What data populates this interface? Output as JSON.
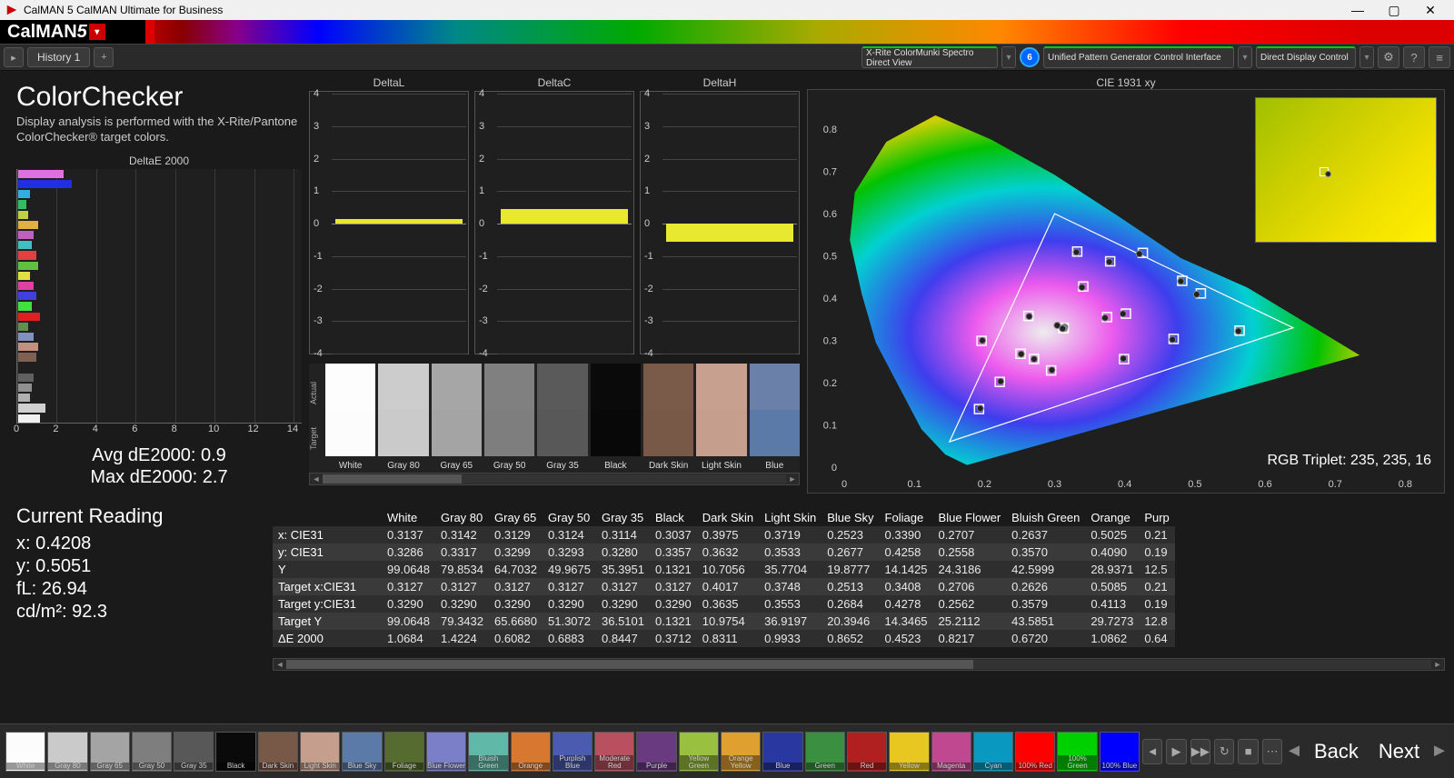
{
  "window": {
    "title": "CalMAN 5 CalMAN Ultimate for Business",
    "brand": "CalMAN5"
  },
  "tabs": {
    "history": "History 1"
  },
  "topPanels": {
    "meter": "X-Rite ColorMunki Spectro\nDirect View",
    "meterCount": "6",
    "source": "Unified Pattern Generator Control Interface",
    "display": "Direct Display Control"
  },
  "header": {
    "title": "ColorChecker",
    "subtitle": "Display analysis is performed with the X-Rite/Pantone ColorChecker® target colors."
  },
  "de2000": {
    "title": "DeltaE 2000",
    "xmax": 14,
    "xticks": [
      0,
      2,
      4,
      6,
      8,
      10,
      12,
      14
    ],
    "bars": [
      {
        "v": 2.3,
        "c": "#e070e0"
      },
      {
        "v": 2.7,
        "c": "#2030e0"
      },
      {
        "v": 0.6,
        "c": "#30b0e0"
      },
      {
        "v": 0.4,
        "c": "#30c060"
      },
      {
        "v": 0.5,
        "c": "#c0d040"
      },
      {
        "v": 1.0,
        "c": "#e0b040"
      },
      {
        "v": 0.8,
        "c": "#c060c0"
      },
      {
        "v": 0.7,
        "c": "#40c0c0"
      },
      {
        "v": 0.9,
        "c": "#e04040"
      },
      {
        "v": 1.0,
        "c": "#60c040"
      },
      {
        "v": 0.6,
        "c": "#e0e040"
      },
      {
        "v": 0.8,
        "c": "#e040a0"
      },
      {
        "v": 0.9,
        "c": "#4040e0"
      },
      {
        "v": 0.7,
        "c": "#40e040"
      },
      {
        "v": 1.1,
        "c": "#e02020"
      },
      {
        "v": 0.5,
        "c": "#609050"
      },
      {
        "v": 0.8,
        "c": "#8090c0"
      },
      {
        "v": 1.0,
        "c": "#c09080"
      },
      {
        "v": 0.9,
        "c": "#806050"
      },
      {
        "v": 0.4,
        "c": "#202020"
      },
      {
        "v": 0.8,
        "c": "#606060"
      },
      {
        "v": 0.7,
        "c": "#909090"
      },
      {
        "v": 0.6,
        "c": "#b0b0b0"
      },
      {
        "v": 1.4,
        "c": "#d0d0d0"
      },
      {
        "v": 1.1,
        "c": "#f0f0f0"
      }
    ]
  },
  "stats": {
    "avg_label": "Avg dE2000:",
    "avg": "0.9",
    "max_label": "Max dE2000:",
    "max": "2.7"
  },
  "reading": {
    "title": "Current Reading",
    "x_label": "x:",
    "x": "0.4208",
    "y_label": "y:",
    "y": "0.5051",
    "fl_label": "fL:",
    "fl": "26.94",
    "cd_label": "cd/m²:",
    "cd": "92.3"
  },
  "deltaCharts": {
    "ymin": -4,
    "ymax": 4,
    "ticks": [
      -4,
      -3,
      -2,
      -1,
      0,
      1,
      2,
      3,
      4
    ],
    "items": [
      {
        "title": "DeltaL",
        "value": 0.15,
        "color": "#e8e830"
      },
      {
        "title": "DeltaC",
        "value": 0.45,
        "color": "#e8e830"
      },
      {
        "title": "DeltaH",
        "value": -0.55,
        "color": "#e8e830"
      }
    ]
  },
  "swatches": {
    "axis_actual": "Actual",
    "axis_target": "Target",
    "items": [
      {
        "label": "White",
        "actual": "#fdfdfd",
        "target": "#fcfcfc"
      },
      {
        "label": "Gray 80",
        "actual": "#cccccc",
        "target": "#cacaca"
      },
      {
        "label": "Gray 65",
        "actual": "#a6a6a6",
        "target": "#a4a4a4"
      },
      {
        "label": "Gray 50",
        "actual": "#808080",
        "target": "#7e7e7e"
      },
      {
        "label": "Gray 35",
        "actual": "#5a5a5a",
        "target": "#585858"
      },
      {
        "label": "Black",
        "actual": "#0a0a0a",
        "target": "#080808"
      },
      {
        "label": "Dark Skin",
        "actual": "#7a5a48",
        "target": "#785846"
      },
      {
        "label": "Light Skin",
        "actual": "#c8a090",
        "target": "#c69e8e"
      },
      {
        "label": "Blue",
        "actual": "#6a80a8",
        "target": "#5c7aa8"
      }
    ]
  },
  "cie": {
    "title": "CIE 1931 xy",
    "xlim": [
      0,
      0.85
    ],
    "ylim": [
      0,
      0.88
    ],
    "xticks": [
      0,
      0.1,
      0.2,
      0.3,
      0.4,
      0.5,
      0.6,
      0.7,
      0.8
    ],
    "yticks": [
      0,
      0.1,
      0.2,
      0.3,
      0.4,
      0.5,
      0.6,
      0.7,
      0.8
    ],
    "rgb_label": "RGB Triplet:",
    "rgb": "235, 235, 16",
    "triangle": [
      [
        0.64,
        0.33
      ],
      [
        0.3,
        0.6
      ],
      [
        0.15,
        0.06
      ]
    ],
    "targets": [
      [
        0.3127,
        0.329
      ],
      [
        0.4017,
        0.3635
      ],
      [
        0.3748,
        0.3553
      ],
      [
        0.2513,
        0.2684
      ],
      [
        0.3408,
        0.4278
      ],
      [
        0.2706,
        0.2562
      ],
      [
        0.2626,
        0.3579
      ],
      [
        0.5085,
        0.4113
      ],
      [
        0.2218,
        0.2018
      ],
      [
        0.4697,
        0.3036
      ],
      [
        0.295,
        0.229
      ],
      [
        0.3792,
        0.4873
      ],
      [
        0.4819,
        0.4411
      ],
      [
        0.1922,
        0.1376
      ],
      [
        0.3322,
        0.5104
      ],
      [
        0.5637,
        0.3232
      ],
      [
        0.4258,
        0.5072
      ],
      [
        0.399,
        0.2558
      ],
      [
        0.1958,
        0.299
      ],
      [
        0.3127,
        0.329
      ],
      [
        0.3127,
        0.329
      ],
      [
        0.3127,
        0.329
      ],
      [
        0.3127,
        0.329
      ],
      [
        0.3127,
        0.329
      ]
    ],
    "measured": [
      [
        0.3137,
        0.3286
      ],
      [
        0.3975,
        0.3632
      ],
      [
        0.3719,
        0.3533
      ],
      [
        0.2523,
        0.2677
      ],
      [
        0.339,
        0.4258
      ],
      [
        0.2707,
        0.2558
      ],
      [
        0.2637,
        0.357
      ],
      [
        0.5025,
        0.409
      ],
      [
        0.223,
        0.203
      ],
      [
        0.468,
        0.302
      ],
      [
        0.296,
        0.23
      ],
      [
        0.378,
        0.486
      ],
      [
        0.48,
        0.44
      ],
      [
        0.194,
        0.139
      ],
      [
        0.331,
        0.509
      ],
      [
        0.562,
        0.322
      ],
      [
        0.4208,
        0.5051
      ],
      [
        0.398,
        0.257
      ],
      [
        0.197,
        0.3
      ],
      [
        0.3142,
        0.3317
      ],
      [
        0.3129,
        0.3299
      ],
      [
        0.3124,
        0.3293
      ],
      [
        0.3114,
        0.328
      ],
      [
        0.3037,
        0.3357
      ]
    ]
  },
  "table": {
    "columns": [
      "",
      "White",
      "Gray 80",
      "Gray 65",
      "Gray 50",
      "Gray 35",
      "Black",
      "Dark Skin",
      "Light Skin",
      "Blue Sky",
      "Foliage",
      "Blue Flower",
      "Bluish Green",
      "Orange",
      "Purp"
    ],
    "rows": [
      {
        "label": "x: CIE31",
        "v": [
          "0.3137",
          "0.3142",
          "0.3129",
          "0.3124",
          "0.3114",
          "0.3037",
          "0.3975",
          "0.3719",
          "0.2523",
          "0.3390",
          "0.2707",
          "0.2637",
          "0.5025",
          "0.21"
        ]
      },
      {
        "label": "y: CIE31",
        "v": [
          "0.3286",
          "0.3317",
          "0.3299",
          "0.3293",
          "0.3280",
          "0.3357",
          "0.3632",
          "0.3533",
          "0.2677",
          "0.4258",
          "0.2558",
          "0.3570",
          "0.4090",
          "0.19"
        ]
      },
      {
        "label": "Y",
        "v": [
          "99.0648",
          "79.8534",
          "64.7032",
          "49.9675",
          "35.3951",
          "0.1321",
          "10.7056",
          "35.7704",
          "19.8777",
          "14.1425",
          "24.3186",
          "42.5999",
          "28.9371",
          "12.5"
        ]
      },
      {
        "label": "Target x:CIE31",
        "v": [
          "0.3127",
          "0.3127",
          "0.3127",
          "0.3127",
          "0.3127",
          "0.3127",
          "0.4017",
          "0.3748",
          "0.2513",
          "0.3408",
          "0.2706",
          "0.2626",
          "0.5085",
          "0.21"
        ]
      },
      {
        "label": "Target y:CIE31",
        "v": [
          "0.3290",
          "0.3290",
          "0.3290",
          "0.3290",
          "0.3290",
          "0.3290",
          "0.3635",
          "0.3553",
          "0.2684",
          "0.4278",
          "0.2562",
          "0.3579",
          "0.4113",
          "0.19"
        ]
      },
      {
        "label": "Target Y",
        "v": [
          "99.0648",
          "79.3432",
          "65.6680",
          "51.3072",
          "36.5101",
          "0.1321",
          "10.9754",
          "36.9197",
          "20.3946",
          "14.3465",
          "25.2112",
          "43.5851",
          "29.7273",
          "12.8"
        ]
      },
      {
        "label": "ΔE 2000",
        "v": [
          "1.0684",
          "1.4224",
          "0.6082",
          "0.6883",
          "0.8447",
          "0.3712",
          "0.8311",
          "0.9933",
          "0.8652",
          "0.4523",
          "0.8217",
          "0.6720",
          "1.0862",
          "0.64"
        ]
      }
    ]
  },
  "bottomSwatches": [
    {
      "label": "White",
      "c": "#fcfcfc"
    },
    {
      "label": "Gray 80",
      "c": "#cacaca"
    },
    {
      "label": "Gray 65",
      "c": "#a4a4a4"
    },
    {
      "label": "Gray 50",
      "c": "#7e7e7e"
    },
    {
      "label": "Gray 35",
      "c": "#585858"
    },
    {
      "label": "Black",
      "c": "#0a0a0a"
    },
    {
      "label": "Dark Skin",
      "c": "#785846"
    },
    {
      "label": "Light Skin",
      "c": "#c69e8e"
    },
    {
      "label": "Blue Sky",
      "c": "#5c7aa8"
    },
    {
      "label": "Foliage",
      "c": "#556b2f"
    },
    {
      "label": "Blue Flower",
      "c": "#7a7fc8"
    },
    {
      "label": "Bluish Green",
      "c": "#5fb8a8"
    },
    {
      "label": "Orange",
      "c": "#d87830"
    },
    {
      "label": "Purplish Blue",
      "c": "#4a5bb0"
    },
    {
      "label": "Moderate Red",
      "c": "#b85060"
    },
    {
      "label": "Purple",
      "c": "#6a3a80"
    },
    {
      "label": "Yellow Green",
      "c": "#9ac040"
    },
    {
      "label": "Orange Yellow",
      "c": "#e0a030"
    },
    {
      "label": "Blue",
      "c": "#2838a0"
    },
    {
      "label": "Green",
      "c": "#3a9040"
    },
    {
      "label": "Red",
      "c": "#b02020"
    },
    {
      "label": "Yellow",
      "c": "#e8c820"
    },
    {
      "label": "Magenta",
      "c": "#c04890"
    },
    {
      "label": "Cyan",
      "c": "#0898c0"
    },
    {
      "label": "100% Red",
      "c": "#ff0000"
    },
    {
      "label": "100% Green",
      "c": "#00d000"
    },
    {
      "label": "100% Blue",
      "c": "#0000ff"
    }
  ],
  "nav": {
    "back": "Back",
    "next": "Next"
  }
}
